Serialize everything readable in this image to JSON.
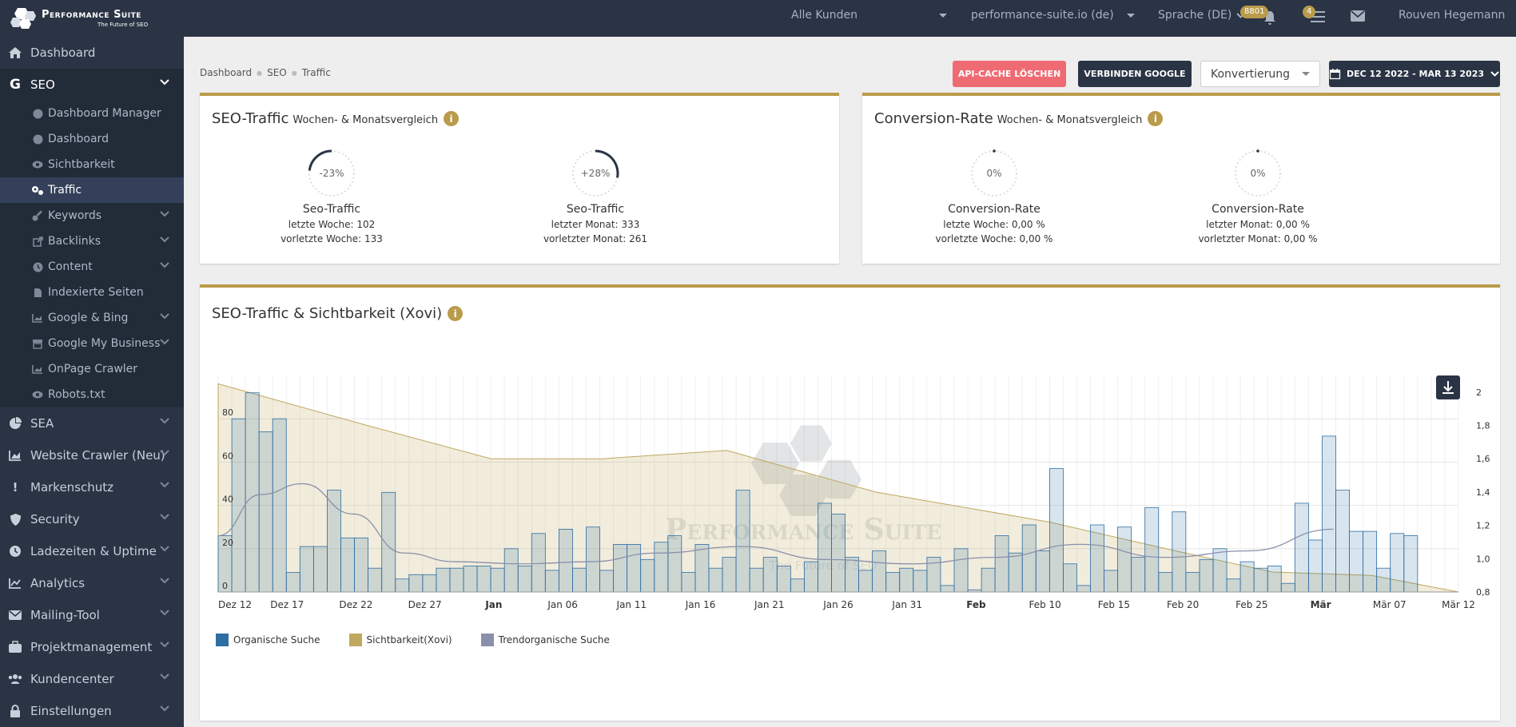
{
  "brand": {
    "title": "Performance Suite",
    "subtitle": "The Future of SEO"
  },
  "topbar": {
    "customer_select": "Alle Kunden",
    "domain_select": "performance-suite.io (de)",
    "language": "Sprache (DE)",
    "bell_badge": "8801",
    "tasks_badge": "4",
    "user_name": "Rouven Hegemann"
  },
  "sidebar": {
    "dashboard": "Dashboard",
    "seo": "SEO",
    "seo_items": [
      "Dashboard Manager",
      "Dashboard",
      "Sichtbarkeit",
      "Traffic",
      "Keywords",
      "Backlinks",
      "Content",
      "Indexierte Seiten",
      "Google & Bing",
      "Google My Business",
      "OnPage Crawler",
      "Robots.txt"
    ],
    "sections": [
      "SEA",
      "Website Crawler (Neu)",
      "Markenschutz",
      "Security",
      "Ladezeiten & Uptime",
      "Analytics",
      "Mailing-Tool",
      "Projektmanagement",
      "Kundencenter",
      "Einstellungen"
    ]
  },
  "breadcrumb": [
    "Dashboard",
    "SEO",
    "Traffic"
  ],
  "actions": {
    "clear_cache": "API-Cache löschen",
    "connect_google": "Verbinden Google",
    "metric_select": "Konvertierung",
    "date_range": "DEC 12 2022 - MAR 13 2023"
  },
  "seo_card": {
    "title": "SEO-Traffic",
    "subtitle": "Wochen- & Monatsvergleich",
    "week": {
      "pct_text": "-23%",
      "pct": -23,
      "label": "Seo-Traffic",
      "line1_label": "letzte Woche:",
      "line1_value": "102",
      "line2_label": "vorletzte Woche:",
      "line2_value": "133"
    },
    "month": {
      "pct_text": "+28%",
      "pct": 28,
      "label": "Seo-Traffic",
      "line1_label": "letzter Monat:",
      "line1_value": "333",
      "line2_label": "vorletzter Monat:",
      "line2_value": "261"
    }
  },
  "conv_card": {
    "title": "Conversion-Rate",
    "subtitle": "Wochen- & Monatsvergleich",
    "week": {
      "pct_text": "0%",
      "pct": 0,
      "label": "Conversion-Rate",
      "line1_label": "letzte Woche:",
      "line1_value": "0,00 %",
      "line2_label": "vorletzte Woche:",
      "line2_value": "0,00 %"
    },
    "month": {
      "pct_text": "0%",
      "pct": 0,
      "label": "Conversion-Rate",
      "line1_label": "letzter Monat:",
      "line1_value": "0,00 %",
      "line2_label": "vorletzter Monat:",
      "line2_value": "0,00 %"
    }
  },
  "traffic_card": {
    "title": "SEO-Traffic & Sichtbarkeit (Xovi)",
    "watermark": "Performance Suite",
    "watermark_sub": "The Future of SEO"
  },
  "colors": {
    "organic": "#2e6ea3",
    "visibility": "#bfa860",
    "trend": "#8a90aa",
    "accent": "#b99b4b",
    "danger": "#ef6b73",
    "dark": "#2a3445"
  },
  "chart_data": {
    "type": "bar",
    "x_ticks": [
      "Dez 12",
      "Dez 17",
      "Dez 22",
      "Dez 27",
      "Jan",
      "Jan 06",
      "Jan 11",
      "Jan 16",
      "Jan 21",
      "Jan 26",
      "Jan 31",
      "Feb",
      "Feb 10",
      "Feb 15",
      "Feb 20",
      "Feb 25",
      "Mär",
      "Mär 07",
      "Mär 12"
    ],
    "y_left_ticks": [
      "0",
      "20",
      "40",
      "60",
      "80"
    ],
    "y_right_ticks": [
      "0,8",
      "1,0",
      "1,2",
      "1,4",
      "1,6",
      "1,8",
      "2"
    ],
    "ylim_left": [
      0,
      100
    ],
    "ylim_right": [
      0.8,
      2.1
    ],
    "series": [
      {
        "name": "Organische Suche",
        "type": "bar",
        "values": [
          26,
          80,
          92,
          74,
          80,
          9,
          21,
          21,
          47,
          25,
          25,
          11,
          46,
          6,
          8,
          8,
          11,
          11,
          12,
          12,
          11,
          20,
          12,
          27,
          10,
          29,
          11,
          30,
          10,
          22,
          22,
          15,
          23,
          26,
          9,
          22,
          11,
          16,
          47,
          11,
          16,
          12,
          6,
          14,
          41,
          36,
          16,
          10,
          19,
          9,
          11,
          10,
          16,
          3,
          20,
          1,
          11,
          26,
          18,
          31,
          19,
          57,
          13,
          3,
          31,
          10,
          30,
          16,
          39,
          9,
          37,
          9,
          15,
          20,
          6,
          14,
          11,
          12,
          4,
          41,
          24,
          72,
          47,
          28,
          28,
          11,
          27,
          26
        ],
        "x_day_start": 0
      },
      {
        "name": "Sichtbarkeit(Xovi)",
        "type": "area",
        "points": [
          [
            0,
            2.05
          ],
          [
            12,
            1.8
          ],
          [
            22,
            1.6
          ],
          [
            31,
            1.6
          ],
          [
            41,
            1.65
          ],
          [
            53,
            1.4
          ],
          [
            67,
            1.22
          ],
          [
            77,
            1.05
          ],
          [
            85,
            0.92
          ],
          [
            93,
            0.9
          ],
          [
            100,
            0.8
          ]
        ]
      },
      {
        "name": "Trendorganische Suche",
        "type": "line",
        "points": [
          [
            0,
            26
          ],
          [
            5,
            45
          ],
          [
            10,
            50
          ],
          [
            16,
            36
          ],
          [
            22,
            18
          ],
          [
            28,
            14
          ],
          [
            36,
            13
          ],
          [
            44,
            14
          ],
          [
            52,
            18
          ],
          [
            62,
            21
          ],
          [
            72,
            15
          ],
          [
            82,
            13
          ],
          [
            92,
            16
          ],
          [
            102,
            22
          ],
          [
            112,
            16
          ],
          [
            122,
            19
          ],
          [
            132,
            29
          ]
        ]
      }
    ]
  }
}
